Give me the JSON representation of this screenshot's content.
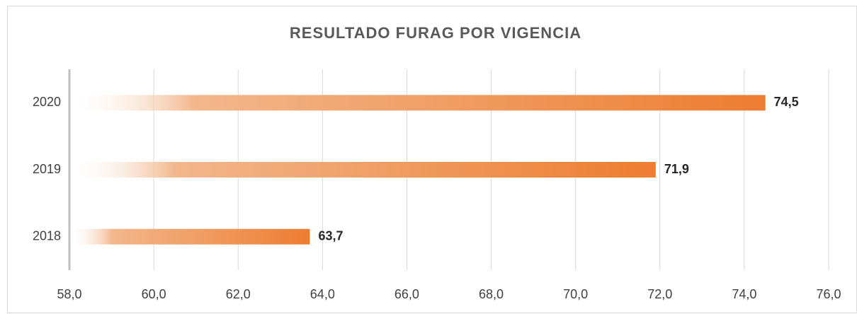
{
  "chart_data": {
    "type": "barh",
    "title": "RESULTADO FURAG POR VIGENCIA",
    "categories": [
      "2020",
      "2019",
      "2018"
    ],
    "values": [
      74.5,
      71.9,
      63.7
    ],
    "value_labels": [
      "74,5",
      "71,9",
      "63,7"
    ],
    "color": "#ed7d31",
    "xlim": [
      58,
      76
    ],
    "xticks": [
      {
        "value": 58,
        "label": "58,0"
      },
      {
        "value": 60,
        "label": "60,0"
      },
      {
        "value": 62,
        "label": "62,0"
      },
      {
        "value": 64,
        "label": "64,0"
      },
      {
        "value": 66,
        "label": "66,0"
      },
      {
        "value": 68,
        "label": "68,0"
      },
      {
        "value": 70,
        "label": "70,0"
      },
      {
        "value": 72,
        "label": "72,0"
      },
      {
        "value": 74,
        "label": "74,0"
      },
      {
        "value": 76,
        "label": "76,0"
      }
    ],
    "grid": true
  }
}
